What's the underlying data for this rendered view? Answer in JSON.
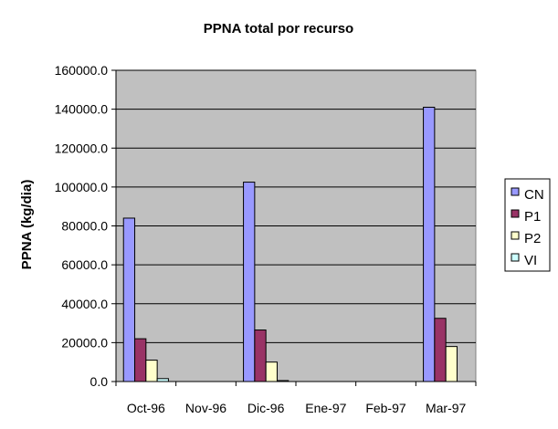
{
  "chart_data": {
    "type": "bar",
    "title": "PPNA total por recurso",
    "xlabel": "",
    "ylabel": "PPNA (kg/dia)",
    "ylim": [
      0,
      160000
    ],
    "yticks": [
      "0.0",
      "20000.0",
      "40000.0",
      "60000.0",
      "80000.0",
      "100000.0",
      "120000.0",
      "140000.0",
      "160000.0"
    ],
    "categories": [
      "Oct-96",
      "Nov-96",
      "Dic-96",
      "Ene-97",
      "Feb-97",
      "Mar-97"
    ],
    "series": [
      {
        "name": "CN",
        "color": "#9999FF",
        "values": [
          84000,
          0,
          102500,
          0,
          0,
          141000
        ]
      },
      {
        "name": "P1",
        "color": "#993366",
        "values": [
          22000,
          0,
          26500,
          0,
          0,
          32500
        ]
      },
      {
        "name": "P2",
        "color": "#FFFFCC",
        "values": [
          11000,
          0,
          10000,
          0,
          0,
          18000
        ]
      },
      {
        "name": "VI",
        "color": "#CCFFFF",
        "values": [
          1500,
          0,
          500,
          0,
          0,
          0
        ]
      }
    ],
    "grid": true,
    "plot_background": "#C0C0C0",
    "legend_position": "right"
  }
}
